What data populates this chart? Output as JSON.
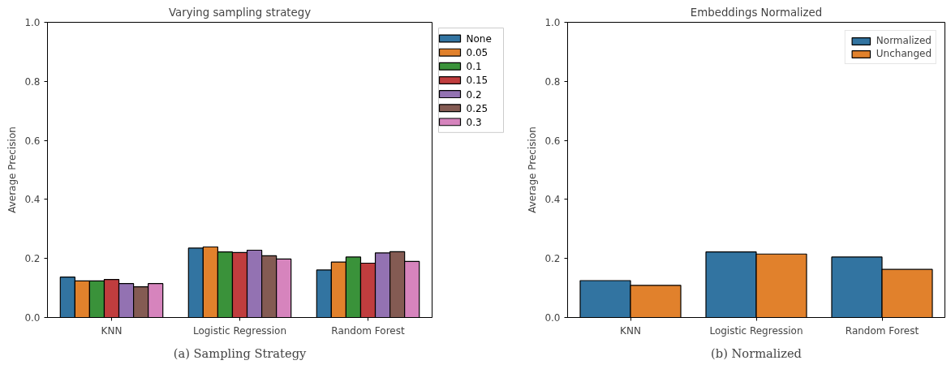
{
  "chart_data": [
    {
      "type": "bar",
      "title": "Varying sampling strategy",
      "ylabel": "Average Precision",
      "categories": [
        "KNN",
        "Logistic Regression",
        "Random Forest"
      ],
      "series": [
        {
          "name": "None",
          "color": "#3274a1",
          "values": [
            0.137,
            0.235,
            0.161
          ]
        },
        {
          "name": "0.05",
          "color": "#e1812c",
          "values": [
            0.124,
            0.239,
            0.188
          ]
        },
        {
          "name": "0.1",
          "color": "#3a923a",
          "values": [
            0.124,
            0.222,
            0.205
          ]
        },
        {
          "name": "0.15",
          "color": "#c03d3e",
          "values": [
            0.129,
            0.22,
            0.184
          ]
        },
        {
          "name": "0.2",
          "color": "#9372b2",
          "values": [
            0.115,
            0.228,
            0.219
          ]
        },
        {
          "name": "0.25",
          "color": "#845b53",
          "values": [
            0.104,
            0.209,
            0.223
          ]
        },
        {
          "name": "0.3",
          "color": "#d684bd",
          "values": [
            0.115,
            0.198,
            0.19
          ]
        }
      ],
      "ylim": [
        0,
        1
      ],
      "yticks": [
        {
          "value": 0,
          "label": "0.0"
        },
        {
          "value": 0.2,
          "label": "0.2"
        },
        {
          "value": 0.4,
          "label": "0.4"
        },
        {
          "value": 0.6,
          "label": "0.6"
        },
        {
          "value": 0.8,
          "label": "0.8"
        },
        {
          "value": 1,
          "label": "1.0"
        }
      ],
      "legend": "right",
      "annotations": [
        "(a) Sampling Strategy"
      ]
    },
    {
      "type": "bar",
      "title": "Embeddings Normalized",
      "ylabel": "Average Precision",
      "categories": [
        "KNN",
        "Logistic Regression",
        "Random Forest"
      ],
      "series": [
        {
          "name": "Normalized",
          "color": "#3274a1",
          "values": [
            0.125,
            0.222,
            0.205
          ]
        },
        {
          "name": "Unchanged",
          "color": "#e1812c",
          "values": [
            0.109,
            0.215,
            0.163
          ]
        }
      ],
      "ylim": [
        0,
        1
      ],
      "yticks": [
        {
          "value": 0,
          "label": "0.0"
        },
        {
          "value": 0.2,
          "label": "0.2"
        },
        {
          "value": 0.4,
          "label": "0.4"
        },
        {
          "value": 0.6,
          "label": "0.6"
        },
        {
          "value": 0.8,
          "label": "0.8"
        },
        {
          "value": 1,
          "label": "1.0"
        }
      ],
      "legend": "top right",
      "annotations": [
        "(b) Normalized"
      ]
    }
  ]
}
